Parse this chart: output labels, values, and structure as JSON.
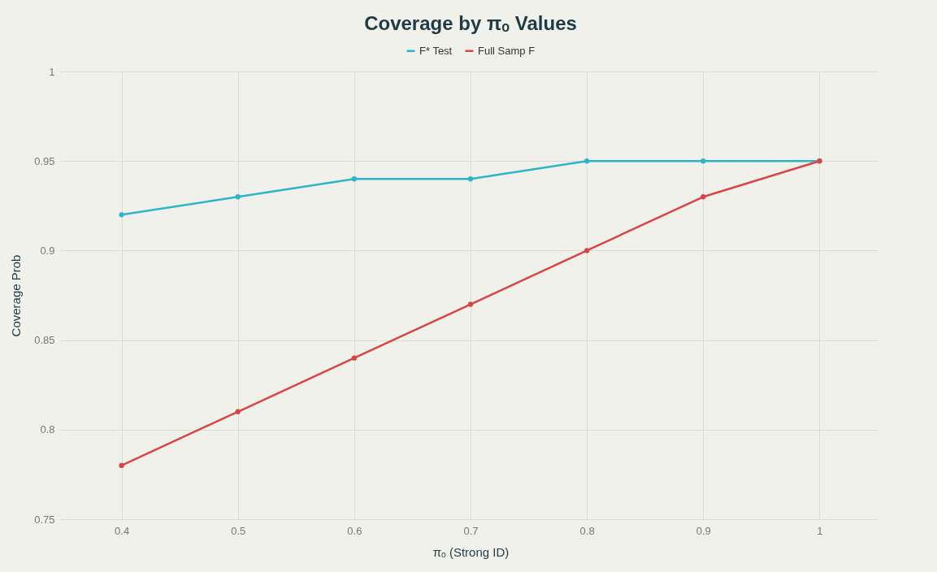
{
  "chart_data": {
    "type": "line",
    "title": "Coverage by πₒ Values",
    "xlabel": "πₒ (Strong ID)",
    "ylabel": "Coverage Prob",
    "x": [
      0.4,
      0.5,
      0.6,
      0.7,
      0.8,
      0.9,
      1
    ],
    "series": [
      {
        "name": "F* Test",
        "color": "#2cb5c8",
        "values": [
          0.92,
          0.93,
          0.94,
          0.94,
          0.95,
          0.95,
          0.95
        ]
      },
      {
        "name": "Full Samp F",
        "color": "#d94545",
        "values": [
          0.78,
          0.81,
          0.84,
          0.87,
          0.9,
          0.93,
          0.95
        ]
      }
    ],
    "xlim": [
      0.35,
      1.05
    ],
    "xticks": [
      0.4,
      0.5,
      0.6,
      0.7,
      0.8,
      0.9,
      1
    ],
    "ylim": [
      0.75,
      1
    ],
    "yticks": [
      0.75,
      0.8,
      0.85,
      0.9,
      0.95,
      1
    ],
    "grid": true,
    "legend": "top",
    "marker": "circle",
    "line_style": "solid"
  }
}
